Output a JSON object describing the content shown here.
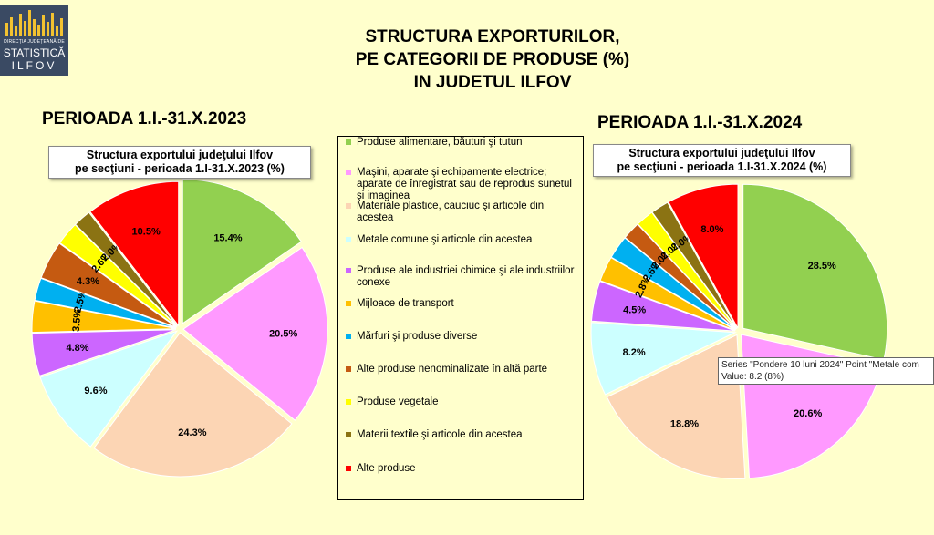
{
  "logo": {
    "line1": "DIRECȚIA JUDEȚEANĂ DE",
    "line2": "STATISTICĂ",
    "line3": "ILFOV"
  },
  "title": {
    "line1": "STRUCTURA EXPORTURILOR,",
    "line2": "PE CATEGORII DE PRODUSE (%)",
    "line3": "IN JUDETUL ILFOV"
  },
  "legend": [
    {
      "label": "Produse alimentare, băuturi şi tutun",
      "color": "#92d050"
    },
    {
      "label": "Maşini, aparate şi echipamente electrice; aparate de înregistrat sau de reprodus sunetul şi imaginea",
      "color": "#ff99ff"
    },
    {
      "label": "Materiale plastice, cauciuc şi articole din acestea",
      "color": "#fcd5b4"
    },
    {
      "label": "Metale comune şi articole din acestea",
      "color": "#ccffff"
    },
    {
      "label": "Produse ale industriei chimice şi ale industriilor conexe",
      "color": "#cc66ff"
    },
    {
      "label": "Mijloace de transport",
      "color": "#ffc000"
    },
    {
      "label": "Mărfuri şi produse diverse",
      "color": "#00b0f0"
    },
    {
      "label": "Alte produse nenominalizate în altă parte",
      "color": "#c55a11"
    },
    {
      "label": "Produse vegetale",
      "color": "#ffff00"
    },
    {
      "label": "Materii textile şi articole din acestea",
      "color": "#8b7313"
    },
    {
      "label": "Alte produse",
      "color": "#ff0000"
    }
  ],
  "chart_data": [
    {
      "type": "pie",
      "title": "Structura exportului judeţului Ilfov pe secţiuni - perioada 1.I-31.X.2023 (%)",
      "period": "PERIOADA 1.I.-31.X.2023",
      "categories": [
        "Produse alimentare, băuturi şi tutun",
        "Maşini, aparate şi echipamente electrice; aparate de înregistrat sau de reprodus sunetul şi imaginea",
        "Materiale plastice, cauciuc şi articole din acestea",
        "Metale comune şi articole din acestea",
        "Produse ale industriei chimice şi ale industriilor conexe",
        "Mijloace de transport",
        "Mărfuri şi produse diverse",
        "Alte produse nenominalizate în altă parte",
        "Produse vegetale",
        "Materii textile şi articole din acestea",
        "Alte produse"
      ],
      "values": [
        15.4,
        20.5,
        24.3,
        9.6,
        4.8,
        3.5,
        2.5,
        4.3,
        2.6,
        2.0,
        10.5
      ],
      "labels": [
        "15.4%",
        "20.5%",
        "24.3%",
        "9.6%",
        "4.8%",
        "3.5%",
        "2.5%",
        "4.3%",
        "2.6%",
        "2.0%",
        "10.5%"
      ]
    },
    {
      "type": "pie",
      "title": "Structura exportului judeţului Ilfov pe secţiuni - perioada 1.I-31.X.2024 (%)",
      "period": "PERIOADA 1.I.-31.X.2024",
      "categories": [
        "Produse alimentare, băuturi şi tutun",
        "Maşini, aparate şi echipamente electrice; aparate de înregistrat sau de reprodus sunetul şi imaginea",
        "Materiale plastice, cauciuc şi articole din acestea",
        "Metale comune şi articole din acestea",
        "Produse ale industriei chimice şi ale industriilor conexe",
        "Mijloace de transport",
        "Mărfuri şi produse diverse",
        "Alte produse nenominalizate în altă parte",
        "Produse vegetale",
        "Materii textile şi articole din acestea",
        "Alte produse"
      ],
      "values": [
        28.5,
        20.6,
        18.8,
        8.2,
        4.5,
        2.8,
        2.6,
        2.0,
        2.0,
        2.0,
        8.0
      ],
      "labels": [
        "28.5%",
        "20.6%",
        "18.8%",
        "8.2%",
        "4.5%",
        "2.8%",
        "2.6%",
        "2.0%",
        "2.0%",
        "2.0%",
        "8.0%"
      ]
    }
  ],
  "tooltip": {
    "line1": "Series \"Pondere 10 luni 2024\" Point \"Metale com",
    "line2": "Value: 8.2 (8%)"
  }
}
